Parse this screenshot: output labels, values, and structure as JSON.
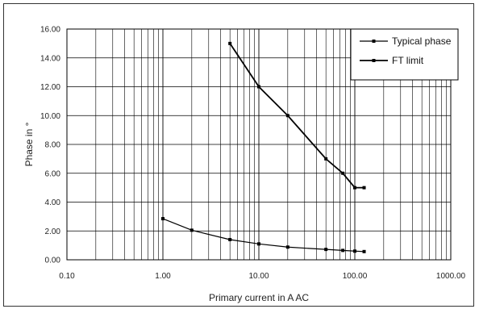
{
  "chart_data": {
    "type": "line",
    "x_scale": "log",
    "xlim": [
      0.1,
      1000
    ],
    "ylim": [
      0,
      16
    ],
    "xlabel": "Primary current in A AC",
    "ylabel": "Phase in °",
    "x_ticks": [
      "0.10",
      "1.00",
      "10.00",
      "100.00",
      "1000.00"
    ],
    "y_ticks": [
      "0.00",
      "2.00",
      "4.00",
      "6.00",
      "8.00",
      "10.00",
      "12.00",
      "14.00",
      "16.00"
    ],
    "grid": true,
    "legend_position": "top-right",
    "series": [
      {
        "name": "Typical phase",
        "x": [
          1,
          2,
          5,
          10,
          20,
          50,
          75,
          100,
          125
        ],
        "y": [
          2.85,
          2.05,
          1.4,
          1.1,
          0.88,
          0.72,
          0.65,
          0.6,
          0.57
        ],
        "color": "#000000"
      },
      {
        "name": "FT limit",
        "x": [
          5,
          10,
          20,
          50,
          75,
          100,
          125
        ],
        "y": [
          15,
          12,
          10,
          7,
          6,
          5,
          5
        ],
        "color": "#000000"
      }
    ]
  }
}
